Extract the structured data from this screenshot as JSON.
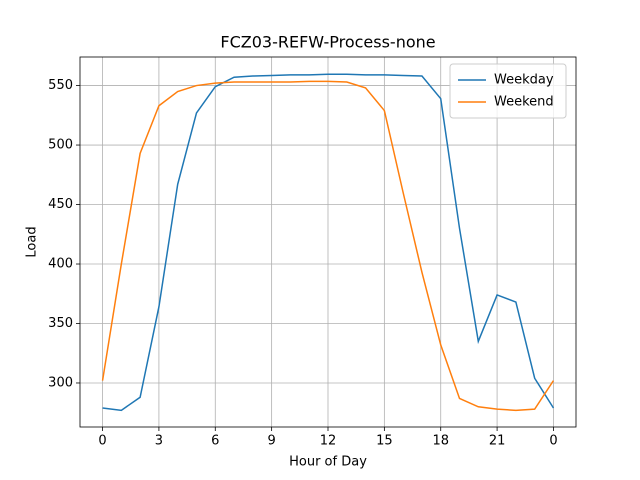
{
  "chart_data": {
    "type": "line",
    "title": "FCZ03-REFW-Process-none",
    "x_label": "Hour of Day",
    "y_label": "Load",
    "x": [
      0,
      1,
      2,
      3,
      4,
      5,
      6,
      7,
      8,
      9,
      10,
      11,
      12,
      13,
      14,
      15,
      16,
      17,
      18,
      19,
      20,
      21,
      22,
      23,
      24
    ],
    "series": [
      {
        "name": "Weekday",
        "color": "#1f77b4",
        "values": [
          279,
          277,
          288,
          364,
          467,
          527,
          549,
          557,
          558,
          558.5,
          559,
          559,
          559.5,
          559.5,
          559,
          559,
          558.5,
          558,
          539,
          430,
          335,
          374,
          368,
          304,
          279
        ]
      },
      {
        "name": "Weekend",
        "color": "#ff7f0e",
        "values": [
          302,
          400,
          493,
          533,
          545,
          550,
          552,
          553,
          553,
          553,
          553,
          553.5,
          553.5,
          553,
          548,
          529,
          460,
          393,
          332,
          287,
          280,
          278,
          277,
          278,
          302
        ]
      }
    ],
    "xlim": [
      -1.2,
      25.2
    ],
    "ylim": [
      263,
      574
    ],
    "xticks": [
      0,
      3,
      6,
      9,
      12,
      15,
      18,
      21,
      {
        "value": 24,
        "label": "0"
      }
    ],
    "yticks": [
      300,
      350,
      400,
      450,
      500,
      550
    ],
    "grid": true,
    "legend": "upper-right"
  }
}
